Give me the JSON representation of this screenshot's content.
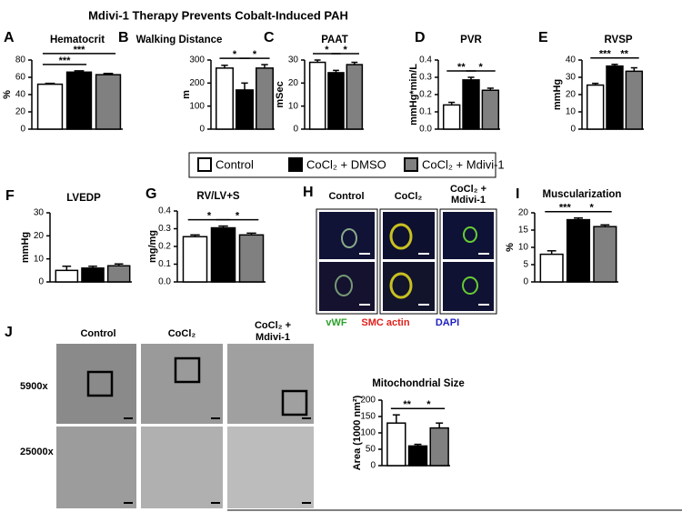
{
  "figure": {
    "title": "Mdivi-1 Therapy Prevents Cobalt-Induced PAH",
    "legend": [
      "Control",
      "CoCl₂ + DMSO",
      "CoCl₂ + Mdivi-1"
    ],
    "legend_colors": [
      "#ffffff",
      "#000000",
      "#808080"
    ],
    "panel_h": {
      "letter": "H",
      "columns": [
        [
          "Control"
        ],
        [
          "CoCl₂"
        ],
        [
          "CoCl₂ +",
          "Mdivi-1"
        ]
      ],
      "stains": [
        "vWF",
        "SMC actin",
        "DAPI"
      ],
      "stain_colors": [
        "#2ca02c",
        "#e0201b",
        "#2020c0"
      ]
    },
    "panel_j": {
      "letter": "J",
      "columns": [
        [
          "Control"
        ],
        [
          "CoCl₂"
        ],
        [
          "CoCl₂ +",
          "Mdivi-1"
        ]
      ],
      "rows": [
        "5900x",
        "25000x"
      ]
    }
  },
  "chart_data": [
    {
      "type": "bar",
      "panel": "A",
      "title": "Hematocrit",
      "ylabel": "%",
      "values": [
        52,
        66,
        63
      ],
      "errors": [
        1,
        1.5,
        1.5
      ],
      "ylim": [
        0,
        80
      ],
      "yticks": [
        0,
        20,
        40,
        60,
        80
      ],
      "annotations": [
        {
          "label": "***",
          "bars": [
            0,
            1
          ]
        },
        {
          "label": "***",
          "bars": [
            0,
            2
          ]
        }
      ]
    },
    {
      "type": "bar",
      "panel": "B",
      "title": "Walking Distance",
      "ylabel": "m",
      "values": [
        265,
        170,
        265
      ],
      "errors": [
        12,
        30,
        15
      ],
      "ylim": [
        0,
        300
      ],
      "yticks": [
        0,
        100,
        200,
        300
      ],
      "annotations": [
        {
          "label": "*",
          "bars": [
            0,
            1
          ]
        },
        {
          "label": "*",
          "bars": [
            1,
            2
          ]
        }
      ]
    },
    {
      "type": "bar",
      "panel": "C",
      "title": "PAAT",
      "ylabel": "mSec",
      "values": [
        29,
        24.5,
        28
      ],
      "errors": [
        1,
        1,
        1
      ],
      "ylim": [
        0,
        30
      ],
      "yticks": [
        0,
        10,
        20,
        30
      ],
      "annotations": [
        {
          "label": "*",
          "bars": [
            0,
            1
          ]
        },
        {
          "label": "*",
          "bars": [
            1,
            2
          ]
        }
      ]
    },
    {
      "type": "bar",
      "panel": "D",
      "title": "PVR",
      "ylabel": "mmHg*min/L",
      "values": [
        0.14,
        0.285,
        0.225
      ],
      "errors": [
        0.015,
        0.015,
        0.012
      ],
      "ylim": [
        0,
        0.4
      ],
      "yticks": [
        {
          "value": 0,
          "label": "0.0"
        },
        0.1,
        0.2,
        0.3,
        0.4
      ],
      "annotations": [
        {
          "label": "**",
          "bars": [
            0,
            1
          ]
        },
        {
          "label": "*",
          "bars": [
            1,
            2
          ]
        }
      ]
    },
    {
      "type": "bar",
      "panel": "E",
      "title": "RVSP",
      "ylabel": "mmHg",
      "values": [
        25.5,
        36.5,
        33.5
      ],
      "errors": [
        1,
        1,
        2
      ],
      "ylim": [
        0,
        40
      ],
      "yticks": [
        0,
        10,
        20,
        30,
        40
      ],
      "annotations": [
        {
          "label": "***",
          "bars": [
            0,
            1
          ]
        },
        {
          "label": "**",
          "bars": [
            1,
            2
          ]
        }
      ]
    },
    {
      "type": "bar",
      "panel": "F",
      "title": "LVEDP",
      "ylabel": "mmHg",
      "values": [
        5,
        6,
        7
      ],
      "errors": [
        1.8,
        0.8,
        0.8
      ],
      "ylim": [
        0,
        30
      ],
      "yticks": [
        0,
        10,
        20,
        30
      ],
      "annotations": []
    },
    {
      "type": "bar",
      "panel": "G",
      "title": "RV/LV+S",
      "ylabel": "mg/mg",
      "values": [
        0.255,
        0.305,
        0.265
      ],
      "errors": [
        0.01,
        0.01,
        0.01
      ],
      "ylim": [
        0,
        0.4
      ],
      "yticks": [
        {
          "value": 0,
          "label": "0.0"
        },
        0.1,
        0.2,
        0.3,
        0.4
      ],
      "annotations": [
        {
          "label": "*",
          "bars": [
            0,
            1
          ]
        },
        {
          "label": "*",
          "bars": [
            1,
            2
          ]
        }
      ]
    },
    {
      "type": "bar",
      "panel": "I",
      "title": "Muscularization",
      "ylabel": "%",
      "values": [
        8,
        18,
        16
      ],
      "errors": [
        1,
        0.5,
        0.5
      ],
      "ylim": [
        0,
        20
      ],
      "yticks": [
        0,
        5,
        10,
        15,
        20
      ],
      "annotations": [
        {
          "label": "***",
          "bars": [
            0,
            1
          ]
        },
        {
          "label": "*",
          "bars": [
            1,
            2
          ]
        }
      ]
    },
    {
      "type": "bar",
      "title": "Mitochondrial Size",
      "ylabel": "Area (1000 nm²)",
      "values": [
        130,
        60,
        115
      ],
      "errors": [
        25,
        5,
        15
      ],
      "ylim": [
        0,
        200
      ],
      "yticks": [
        0,
        50,
        100,
        150,
        200
      ],
      "annotations": [
        {
          "label": "**",
          "bars": [
            0,
            1
          ]
        },
        {
          "label": "*",
          "bars": [
            1,
            2
          ]
        }
      ]
    }
  ]
}
